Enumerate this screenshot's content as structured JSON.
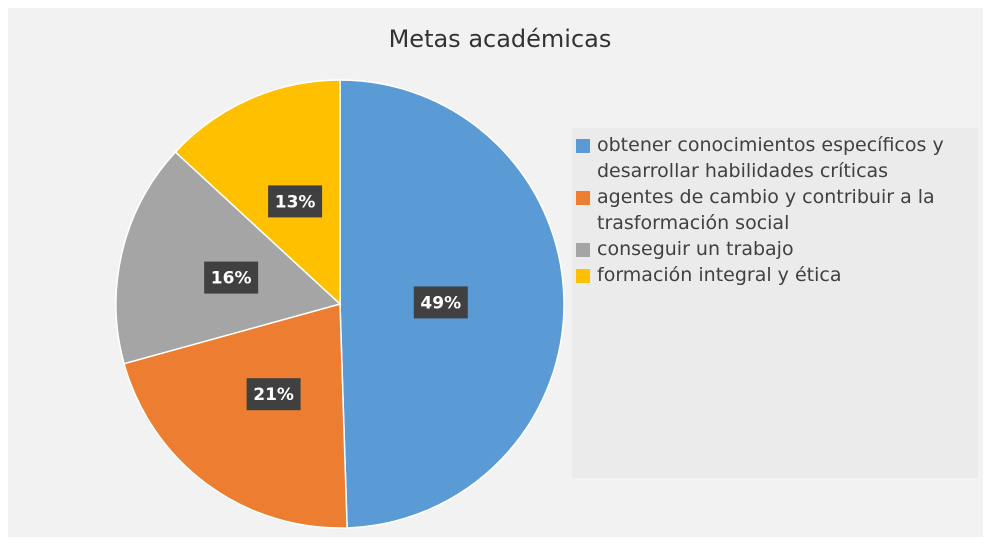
{
  "chart_data": {
    "type": "pie",
    "title": "Metas académicas",
    "categories": [
      "obtener conocimientos específicos y desarrollar habilidades críticas",
      "agentes de cambio y contribuir a la trasformación social",
      "conseguir un trabajo",
      "formación integral y ética"
    ],
    "values": [
      49,
      21,
      16,
      13
    ],
    "value_labels": [
      "49%",
      "21%",
      "16%",
      "13%"
    ],
    "colors": [
      "#5b9bd5",
      "#ed7d31",
      "#a5a5a5",
      "#ffc000"
    ],
    "legend": "right"
  }
}
